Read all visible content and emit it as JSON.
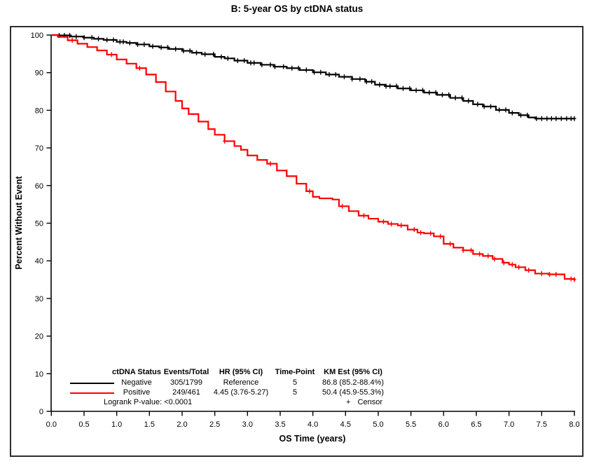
{
  "title": "B: 5-year OS by ctDNA status",
  "chart_data": {
    "type": "line",
    "subtype": "kaplan-meier-step",
    "title": "B: 5-year OS by ctDNA status",
    "xlabel": "OS Time (years)",
    "ylabel": "Percent Without Event",
    "xlim": [
      0,
      8
    ],
    "ylim": [
      0,
      100
    ],
    "grid": false,
    "legend_position": "inside-bottom-left",
    "x_ticks": [
      0,
      0.5,
      1,
      1.5,
      2,
      2.5,
      3,
      3.5,
      4,
      4.5,
      5,
      5.5,
      6,
      6.5,
      7,
      7.5,
      8
    ],
    "x_tick_labels": [
      "0.0",
      "0.5",
      "1.0",
      "1.5",
      "2.0",
      "2.5",
      "3.0",
      "3.5",
      "4.0",
      "4.5",
      "5.0",
      "5.5",
      "6.0",
      "6.5",
      "7.0",
      "7.5",
      "8.0"
    ],
    "y_ticks": [
      0,
      10,
      20,
      30,
      40,
      50,
      60,
      70,
      80,
      90,
      100
    ],
    "y_tick_labels": [
      "0",
      "10",
      "20",
      "30",
      "40",
      "50",
      "60",
      "70",
      "80",
      "90",
      "100"
    ],
    "series": [
      {
        "name": "Negative",
        "color": "#000000",
        "points": [
          [
            0,
            100
          ],
          [
            0.1,
            99.9
          ],
          [
            0.3,
            99.6
          ],
          [
            0.5,
            99.3
          ],
          [
            0.65,
            99.0
          ],
          [
            0.8,
            98.7
          ],
          [
            1.0,
            98.2
          ],
          [
            1.15,
            97.9
          ],
          [
            1.3,
            97.5
          ],
          [
            1.5,
            97.0
          ],
          [
            1.65,
            96.7
          ],
          [
            1.8,
            96.3
          ],
          [
            2.0,
            95.8
          ],
          [
            2.15,
            95.3
          ],
          [
            2.3,
            94.9
          ],
          [
            2.5,
            94.2
          ],
          [
            2.65,
            93.8
          ],
          [
            2.8,
            93.2
          ],
          [
            3.0,
            92.6
          ],
          [
            3.2,
            92.1
          ],
          [
            3.4,
            91.6
          ],
          [
            3.6,
            91.2
          ],
          [
            3.8,
            90.7
          ],
          [
            4.0,
            90.1
          ],
          [
            4.2,
            89.5
          ],
          [
            4.4,
            88.9
          ],
          [
            4.6,
            88.3
          ],
          [
            4.8,
            87.6
          ],
          [
            4.95,
            86.8
          ],
          [
            5.1,
            86.4
          ],
          [
            5.3,
            85.8
          ],
          [
            5.5,
            85.3
          ],
          [
            5.7,
            84.7
          ],
          [
            5.9,
            84.1
          ],
          [
            6.1,
            83.3
          ],
          [
            6.3,
            82.5
          ],
          [
            6.45,
            81.6
          ],
          [
            6.6,
            81.0
          ],
          [
            6.8,
            80.1
          ],
          [
            7.0,
            79.3
          ],
          [
            7.15,
            78.7
          ],
          [
            7.3,
            78.1
          ],
          [
            7.4,
            77.8
          ],
          [
            8.0,
            77.8
          ]
        ],
        "censor_times": [
          0.12,
          0.2,
          0.28,
          0.38,
          0.5,
          0.62,
          0.72,
          0.85,
          0.95,
          1.05,
          1.1,
          1.2,
          1.32,
          1.42,
          1.55,
          1.68,
          1.78,
          1.9,
          2.02,
          2.12,
          2.22,
          2.35,
          2.48,
          2.6,
          2.7,
          2.85,
          2.95,
          3.05,
          3.1,
          3.22,
          3.35,
          3.42,
          3.55,
          3.68,
          3.78,
          3.9,
          4.02,
          4.12,
          4.25,
          4.35,
          4.48,
          4.6,
          4.72,
          4.82,
          4.9,
          5.02,
          5.12,
          5.18,
          5.28,
          5.38,
          5.48,
          5.58,
          5.68,
          5.78,
          5.88,
          5.98,
          6.08,
          6.18,
          6.28,
          6.38,
          6.52,
          6.62,
          6.72,
          6.85,
          6.95,
          7.05,
          7.18,
          7.28,
          7.42,
          7.5,
          7.58,
          7.65,
          7.72,
          7.8,
          7.88,
          7.95,
          8.0
        ]
      },
      {
        "name": "Positive",
        "color": "#ff0000",
        "points": [
          [
            0,
            100
          ],
          [
            0.1,
            99.5
          ],
          [
            0.25,
            98.6
          ],
          [
            0.4,
            97.7
          ],
          [
            0.55,
            96.8
          ],
          [
            0.7,
            95.9
          ],
          [
            0.85,
            94.8
          ],
          [
            1.0,
            93.5
          ],
          [
            1.15,
            92.4
          ],
          [
            1.3,
            91.2
          ],
          [
            1.45,
            89.5
          ],
          [
            1.6,
            87.5
          ],
          [
            1.75,
            85.0
          ],
          [
            1.9,
            82.5
          ],
          [
            2.0,
            80.5
          ],
          [
            2.1,
            79.0
          ],
          [
            2.25,
            77.0
          ],
          [
            2.4,
            75.0
          ],
          [
            2.5,
            73.5
          ],
          [
            2.65,
            71.8
          ],
          [
            2.8,
            70.5
          ],
          [
            2.9,
            69.5
          ],
          [
            3.0,
            68.0
          ],
          [
            3.15,
            66.8
          ],
          [
            3.3,
            65.8
          ],
          [
            3.45,
            64.0
          ],
          [
            3.6,
            62.5
          ],
          [
            3.75,
            60.5
          ],
          [
            3.9,
            58.5
          ],
          [
            4.0,
            57.0
          ],
          [
            4.1,
            56.6
          ],
          [
            4.3,
            56.3
          ],
          [
            4.4,
            54.5
          ],
          [
            4.55,
            53.2
          ],
          [
            4.7,
            52.0
          ],
          [
            4.85,
            51.2
          ],
          [
            5.0,
            50.4
          ],
          [
            5.15,
            49.8
          ],
          [
            5.3,
            49.4
          ],
          [
            5.45,
            48.3
          ],
          [
            5.6,
            47.5
          ],
          [
            5.7,
            47.3
          ],
          [
            5.85,
            46.5
          ],
          [
            6.0,
            44.5
          ],
          [
            6.15,
            43.5
          ],
          [
            6.3,
            42.8
          ],
          [
            6.45,
            41.8
          ],
          [
            6.6,
            41.3
          ],
          [
            6.75,
            40.5
          ],
          [
            6.9,
            39.5
          ],
          [
            7.0,
            39.0
          ],
          [
            7.1,
            38.3
          ],
          [
            7.25,
            37.5
          ],
          [
            7.4,
            36.6
          ],
          [
            7.6,
            36.4
          ],
          [
            7.85,
            35.2
          ],
          [
            8.0,
            35.0
          ]
        ],
        "censor_times": [
          0.32,
          0.92,
          1.35,
          2.65,
          3.35,
          3.95,
          4.45,
          4.78,
          5.08,
          5.2,
          5.35,
          5.55,
          5.65,
          5.8,
          5.95,
          6.1,
          6.3,
          6.42,
          6.55,
          6.68,
          6.78,
          6.92,
          7.05,
          7.15,
          7.3,
          7.5,
          7.62,
          7.72,
          7.95,
          8.0
        ]
      }
    ]
  },
  "legend_table": {
    "headers": [
      "ctDNA Status",
      "Events/Total",
      "HR (95% CI)",
      "Time-Point",
      "KM Est (95% CI)"
    ],
    "rows": [
      {
        "status": "Negative",
        "events_total": "305/1799",
        "hr": "Reference",
        "time_point": "5",
        "km_est": "86.8 (85.2-88.4%)",
        "color": "#000000"
      },
      {
        "status": "Positive",
        "events_total": "249/461",
        "hr": "4.45 (3.76-5.27)",
        "time_point": "5",
        "km_est": "50.4 (45.9-55.3%)",
        "color": "#ff0000"
      }
    ],
    "logrank": "Logrank P-value: <0.0001",
    "censor_symbol": "+",
    "censor_label": "Censor"
  },
  "colors": {
    "negative": "#000000",
    "positive": "#ff0000",
    "axis": "#000000",
    "border": "#2e2e2e",
    "background": "#ffffff"
  }
}
